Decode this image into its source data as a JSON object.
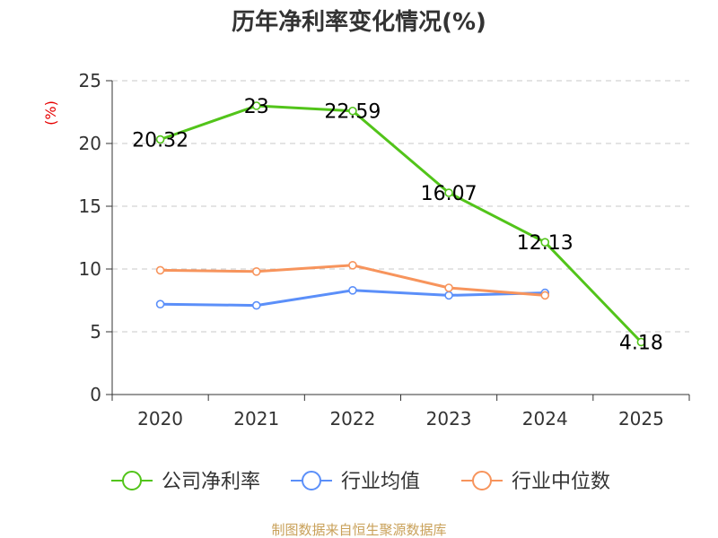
{
  "chart_data": {
    "type": "line",
    "title": "历年净利率变化情况(%)",
    "ylabel": "(%)",
    "xlabel": "",
    "categories": [
      "2020",
      "2021",
      "2022",
      "2023",
      "2024",
      "2025"
    ],
    "ylim": [
      0,
      25
    ],
    "yticks": [
      0,
      5,
      10,
      15,
      20,
      25
    ],
    "grid": true,
    "legend_position": "bottom",
    "series": [
      {
        "name": "公司净利率",
        "color": "#52c41a",
        "values": [
          20.32,
          23,
          22.59,
          16.07,
          12.13,
          4.18
        ],
        "labels": [
          "20.32",
          "23",
          "22.59",
          "16.07",
          "12.13",
          "4.18"
        ]
      },
      {
        "name": "行业均值",
        "color": "#5b8ff9",
        "values": [
          7.2,
          7.1,
          8.3,
          7.9,
          8.1,
          null
        ]
      },
      {
        "name": "行业中位数",
        "color": "#f7945c",
        "values": [
          9.9,
          9.8,
          10.3,
          8.5,
          7.9,
          null
        ]
      }
    ]
  },
  "source": "制图数据来自恒生聚源数据库"
}
